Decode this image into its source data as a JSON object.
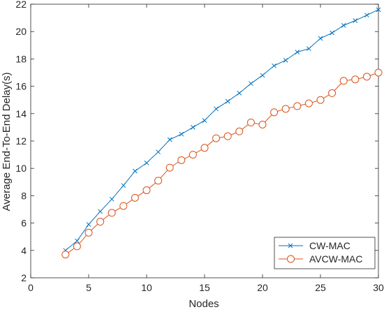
{
  "chart_data": {
    "type": "line",
    "title": "",
    "xlabel": "Nodes",
    "ylabel": "Average End-To-End Delay(s)",
    "xlim": [
      0,
      30
    ],
    "ylim": [
      2,
      22
    ],
    "xticks": [
      0,
      5,
      10,
      15,
      20,
      25,
      30
    ],
    "yticks": [
      2,
      4,
      6,
      8,
      10,
      12,
      14,
      16,
      18,
      20,
      22
    ],
    "grid": false,
    "legend_position": "bottom-right",
    "series": [
      {
        "name": "CW-MAC",
        "color": "#0072BD",
        "marker": "x",
        "x": [
          3,
          4,
          5,
          6,
          7,
          8,
          9,
          10,
          11,
          12,
          13,
          14,
          15,
          16,
          17,
          18,
          19,
          20,
          21,
          22,
          23,
          24,
          25,
          26,
          27,
          28,
          29,
          30
        ],
        "y": [
          4.0,
          4.7,
          5.9,
          6.85,
          7.75,
          8.75,
          9.8,
          10.4,
          11.2,
          12.1,
          12.5,
          13.0,
          13.5,
          14.35,
          14.9,
          15.5,
          16.2,
          16.8,
          17.5,
          17.9,
          18.5,
          18.75,
          19.5,
          19.9,
          20.45,
          20.8,
          21.2,
          21.6
        ]
      },
      {
        "name": "AVCW-MAC",
        "color": "#D95319",
        "marker": "o",
        "x": [
          3,
          4,
          5,
          6,
          7,
          8,
          9,
          10,
          11,
          12,
          13,
          14,
          15,
          16,
          17,
          18,
          19,
          20,
          21,
          22,
          23,
          24,
          25,
          26,
          27,
          28,
          29,
          30
        ],
        "y": [
          3.7,
          4.3,
          5.3,
          6.1,
          6.75,
          7.25,
          7.85,
          8.4,
          9.1,
          10.05,
          10.6,
          11.0,
          11.5,
          12.2,
          12.35,
          12.7,
          13.35,
          13.2,
          14.1,
          14.35,
          14.55,
          14.75,
          15.0,
          15.5,
          16.4,
          16.5,
          16.7,
          17.0
        ]
      }
    ]
  }
}
